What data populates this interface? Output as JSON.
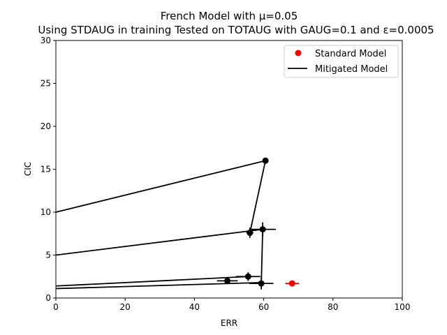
{
  "chart_data": {
    "type": "scatter",
    "title": "French Model with μ=0.05",
    "subtitle": "Using STDAUG in training Tested on TOTAUG with GAUG=0.1 and ε=0.0005",
    "xlabel": "ERR",
    "ylabel": "CIC",
    "xlim": [
      0,
      100
    ],
    "ylim": [
      0,
      30
    ],
    "xticks": [
      0,
      20,
      40,
      60,
      80,
      100
    ],
    "yticks": [
      0,
      5,
      10,
      15,
      20,
      25,
      30
    ],
    "grid": false,
    "legend_position": "top-right",
    "series": [
      {
        "name": "Standard Model",
        "kind": "points",
        "color": "#ff0000",
        "points": [
          {
            "x": 68.2,
            "y": 1.7,
            "xerr": 2.0,
            "yerr": 0.3
          }
        ]
      },
      {
        "name": "Mitigated Model",
        "kind": "line",
        "color": "#000000",
        "points": [
          {
            "x": 60.5,
            "y": 16.0,
            "xerr": 0,
            "yerr": 0
          },
          {
            "x": 56.0,
            "y": 7.6,
            "xerr": 1.0,
            "yerr": 0.6
          },
          {
            "x": 59.7,
            "y": 8.0,
            "xerr": 3.8,
            "yerr": 0.8
          },
          {
            "x": 55.5,
            "y": 2.5,
            "xerr": 3.5,
            "yerr": 0.5
          },
          {
            "x": 49.5,
            "y": 2.0,
            "xerr": 3.0,
            "yerr": 0.3
          },
          {
            "x": 59.3,
            "y": 1.7,
            "xerr": 3.5,
            "yerr": 0.7
          }
        ],
        "lines": [
          {
            "from": [
              0,
              10.0
            ],
            "to": [
              60.5,
              16.0
            ]
          },
          {
            "from": [
              60.5,
              16.0
            ],
            "to": [
              56.0,
              7.6
            ]
          },
          {
            "from": [
              0,
              5.0
            ],
            "to": [
              59.7,
              8.0
            ]
          },
          {
            "from": [
              59.7,
              8.0
            ],
            "to": [
              59.3,
              1.7
            ]
          },
          {
            "from": [
              0,
              1.4
            ],
            "to": [
              55.5,
              2.5
            ]
          },
          {
            "from": [
              0,
              1.1
            ],
            "to": [
              59.3,
              1.8
            ]
          }
        ]
      }
    ]
  }
}
